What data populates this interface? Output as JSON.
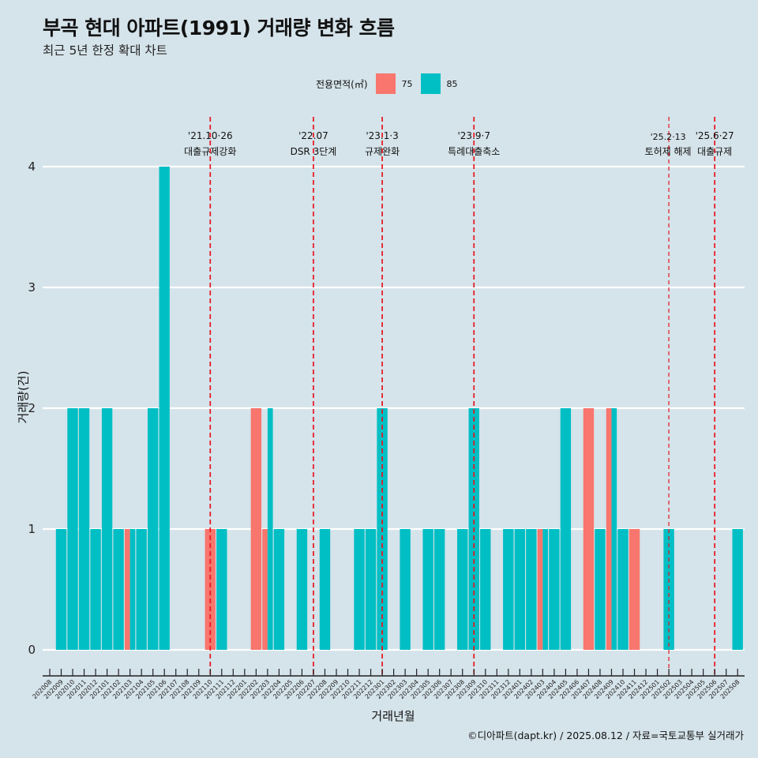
{
  "title": "부곡 현대 아파트(1991) 거래량 변화 흐름",
  "subtitle": "최근 5년 한정 확대 차트",
  "legend": {
    "title": "전용면적(㎡)",
    "items": [
      {
        "label": "75",
        "color": "#f8766d"
      },
      {
        "label": "85",
        "color": "#00bfc4"
      }
    ]
  },
  "caption": "©디아파트(dapt.kr) / 2025.08.12 / 자료=국토교통부 실거래가",
  "chart_data": {
    "type": "bar",
    "title": "부곡 현대 아파트(1991) 거래량 변화 흐름",
    "subtitle": "최근 5년 한정 확대 차트",
    "xlabel": "거래년월",
    "ylabel": "거래량(건)",
    "ylim": [
      0,
      4
    ],
    "yticks": [
      0,
      1,
      2,
      3,
      4
    ],
    "grid": true,
    "legend_position": "top",
    "categories": [
      "202008",
      "202009",
      "202010",
      "202011",
      "202012",
      "202101",
      "202102",
      "202103",
      "202104",
      "202105",
      "202106",
      "202107",
      "202108",
      "202109",
      "202110",
      "202111",
      "202112",
      "202201",
      "202202",
      "202203",
      "202204",
      "202205",
      "202206",
      "202207",
      "202208",
      "202209",
      "202210",
      "202211",
      "202212",
      "202301",
      "202302",
      "202303",
      "202304",
      "202305",
      "202306",
      "202307",
      "202308",
      "202309",
      "202310",
      "202311",
      "202312",
      "202401",
      "202402",
      "202403",
      "202404",
      "202405",
      "202406",
      "202407",
      "202408",
      "202409",
      "202410",
      "202411",
      "202412",
      "202501",
      "202502",
      "202503",
      "202504",
      "202505",
      "202506",
      "202507",
      "202508"
    ],
    "series": [
      {
        "name": "75",
        "color": "#f8766d",
        "values": [
          0,
          0,
          0,
          0,
          0,
          0,
          0,
          1,
          0,
          0,
          0,
          0,
          0,
          0,
          1,
          0,
          0,
          0,
          2,
          1,
          0,
          0,
          0,
          0,
          0,
          0,
          0,
          0,
          0,
          0,
          0,
          0,
          0,
          0,
          0,
          0,
          0,
          0,
          0,
          0,
          0,
          0,
          0,
          1,
          0,
          0,
          0,
          2,
          0,
          2,
          0,
          1,
          0,
          0,
          0,
          0,
          0,
          0,
          0,
          0,
          0
        ]
      },
      {
        "name": "85",
        "color": "#00bfc4",
        "values": [
          0,
          1,
          2,
          2,
          1,
          2,
          1,
          1,
          1,
          2,
          4,
          0,
          0,
          0,
          0,
          1,
          0,
          0,
          0,
          2,
          1,
          0,
          1,
          0,
          1,
          0,
          0,
          1,
          1,
          2,
          0,
          1,
          0,
          1,
          1,
          0,
          1,
          2,
          1,
          0,
          1,
          1,
          1,
          1,
          1,
          2,
          0,
          0,
          1,
          2,
          1,
          0,
          0,
          0,
          1,
          0,
          0,
          0,
          0,
          0,
          1
        ]
      }
    ],
    "annotations": [
      {
        "month": "202110",
        "date": "'21.10·26",
        "label": "대출규제강화",
        "color": "#e8141e"
      },
      {
        "month": "202207",
        "date": "'22.07",
        "label": "DSR 3단계",
        "color": "#e8141e"
      },
      {
        "month": "202301",
        "date": "'23.1·3",
        "label": "규제완화",
        "color": "#e8141e"
      },
      {
        "month": "202309",
        "date": "'23.9·7",
        "label": "특례대출축소",
        "color": "#e8141e"
      },
      {
        "month": "202502",
        "date": "'25.2·13",
        "label": "토허제 해제",
        "color": "#e8141e"
      },
      {
        "month": "202506",
        "date": "'25.6·27",
        "label": "대출규제",
        "color": "#e8141e"
      }
    ]
  }
}
